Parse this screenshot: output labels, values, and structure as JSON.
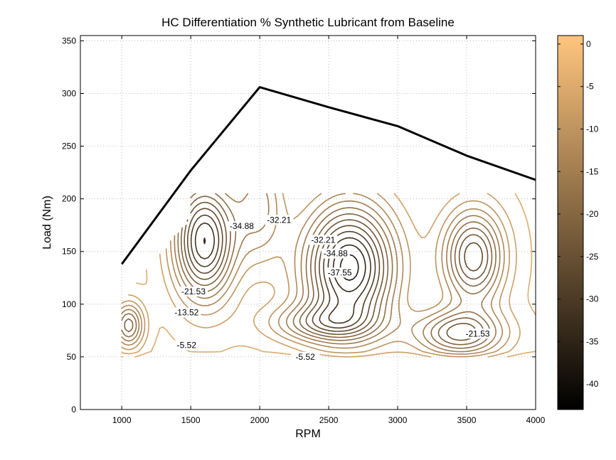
{
  "chart_data": {
    "type": "contour",
    "title": "HC  Differentiation % Synthetic Lubricant from Baseline",
    "xlabel": "RPM",
    "ylabel": "Load (Nm)",
    "xlim": [
      700,
      4000
    ],
    "ylim": [
      0,
      355
    ],
    "xticks": [
      "1000",
      "1500",
      "2000",
      "2500",
      "3000",
      "3500",
      "4000"
    ],
    "yticks": [
      "0",
      "50",
      "100",
      "150",
      "200",
      "250",
      "300",
      "350"
    ],
    "grid": true,
    "colormap": "copper",
    "colorbar": {
      "range": [
        -43,
        1
      ],
      "ticks": [
        "0",
        "-5",
        "-10",
        "-15",
        "-20",
        "-25",
        "-30",
        "-35",
        "-40"
      ],
      "color_low": "#000000",
      "color_high": "#ffc57e"
    },
    "max_torque_curve": {
      "x": [
        1000,
        1500,
        2000,
        2500,
        3000,
        3500,
        4000
      ],
      "y": [
        138,
        227,
        306,
        287,
        269,
        241,
        218
      ]
    },
    "contour_labels": [
      {
        "text": "-34.88",
        "x": 1870,
        "y": 172
      },
      {
        "text": "-32.21",
        "x": 2140,
        "y": 178
      },
      {
        "text": "-32.21",
        "x": 2460,
        "y": 159
      },
      {
        "text": "-34.88",
        "x": 2550,
        "y": 146
      },
      {
        "text": "-37.55",
        "x": 2580,
        "y": 128
      },
      {
        "text": "-21.53",
        "x": 1520,
        "y": 110
      },
      {
        "text": "-13.52",
        "x": 1470,
        "y": 90
      },
      {
        "text": "-5.52",
        "x": 1470,
        "y": 59
      },
      {
        "text": "-5.52",
        "x": 2330,
        "y": 48
      },
      {
        "text": "-21.53",
        "x": 3580,
        "y": 70
      }
    ]
  }
}
